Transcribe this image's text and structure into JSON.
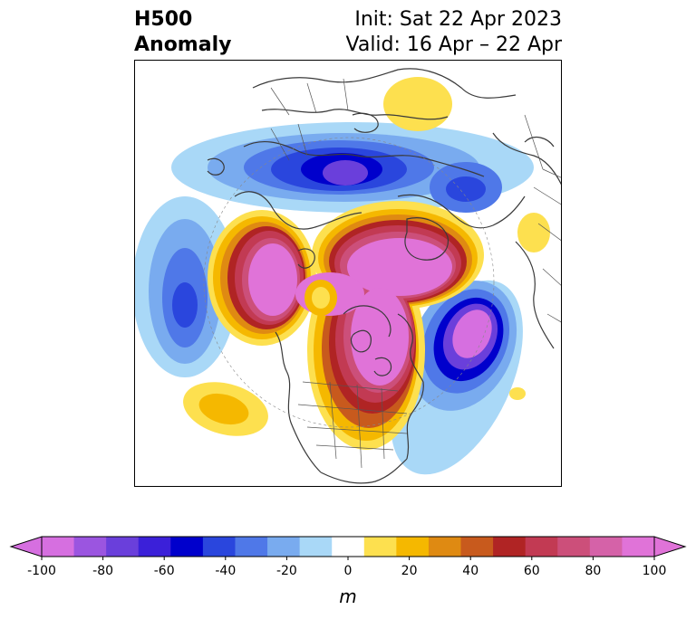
{
  "title": {
    "left_line1": "H500",
    "left_line2": "Anomaly",
    "right_line1": "Init: Sat 22 Apr 2023",
    "right_line2": "Valid: 16 Apr – 22 Apr"
  },
  "colorbar": {
    "unit": "m",
    "tick_labels": [
      "-100",
      "-80",
      "-60",
      "-40",
      "-20",
      "0",
      "20",
      "40",
      "60",
      "80",
      "100"
    ],
    "colors": [
      "#d66fe0",
      "#9b55e0",
      "#6a3fdb",
      "#3b20d9",
      "#0000cc",
      "#2a46dd",
      "#4f78e8",
      "#79abef",
      "#a9d8f7",
      "#ffffff",
      "#fde04f",
      "#f5b800",
      "#df8a12",
      "#c85a1d",
      "#b02424",
      "#c23a53",
      "#cc4f7a",
      "#d562a8",
      "#e073d8"
    ],
    "extend_low_color": "#d66fe0",
    "extend_high_color": "#e073d8"
  },
  "map": {
    "projection": "north-polar-stereographic",
    "region": "Northern Hemisphere"
  }
}
